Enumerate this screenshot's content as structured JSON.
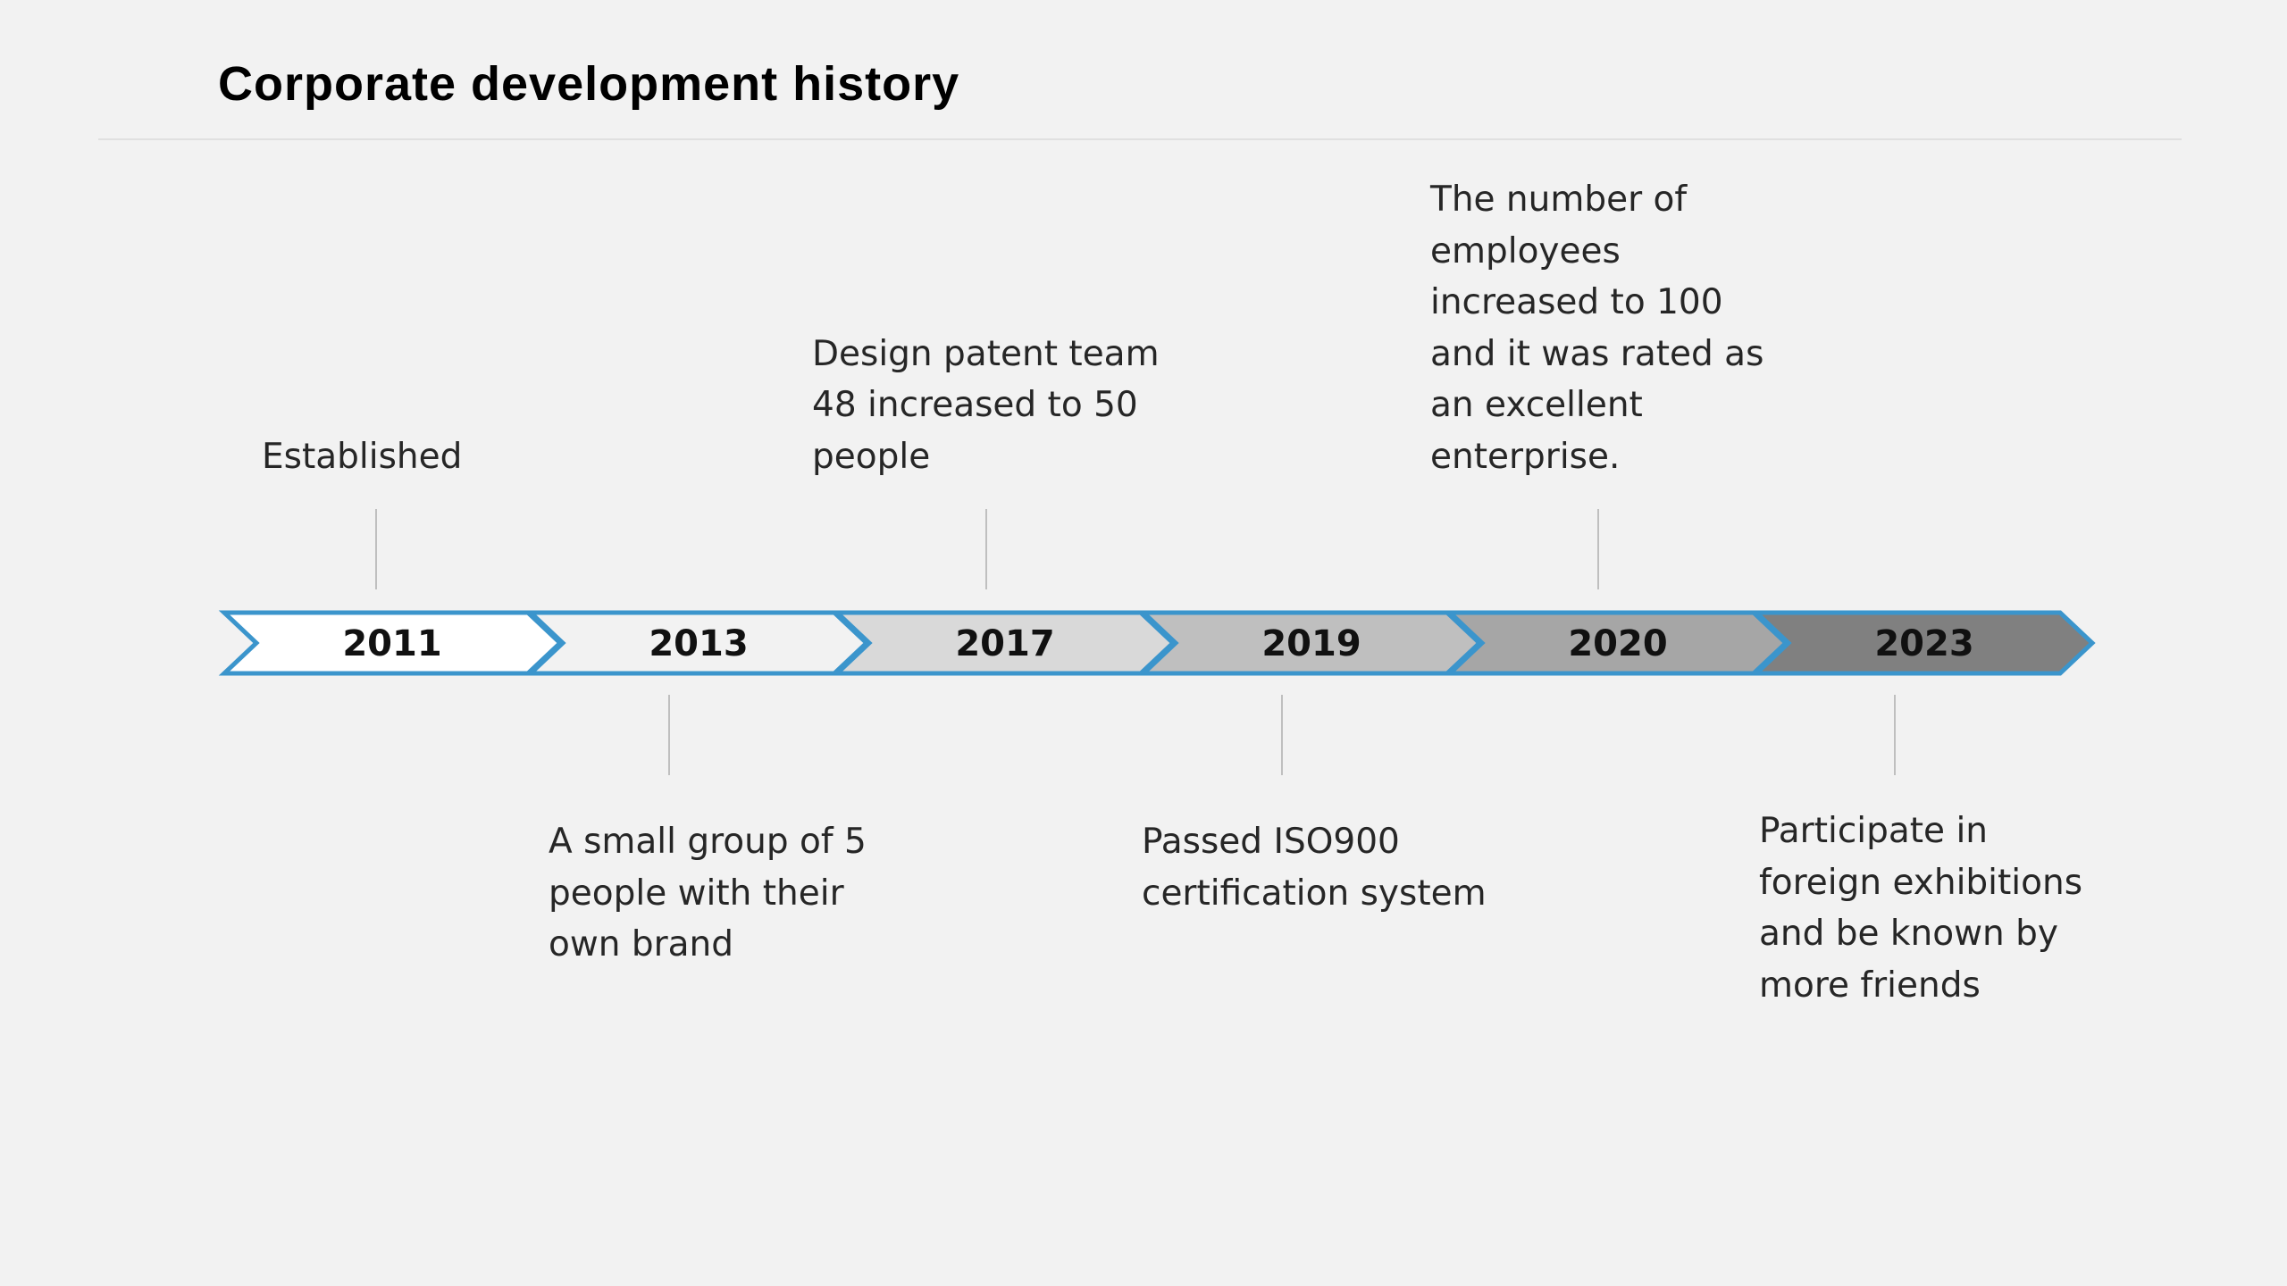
{
  "title": "Corporate development history",
  "colors": {
    "background": "#f2f2f2",
    "outline": "#3b95cc",
    "text": "#262626"
  },
  "milestones": [
    {
      "year": "2011",
      "text": "Established",
      "position": "above",
      "fill": "#ffffff"
    },
    {
      "year": "2013",
      "text": "A small group of 5 people with their own brand",
      "position": "below",
      "fill": "#f2f2f2"
    },
    {
      "year": "2017",
      "text": "Design patent team 48 increased to 50 people",
      "position": "above",
      "fill": "#d9d9d9"
    },
    {
      "year": "2019",
      "text": "Passed ISO900 certification system",
      "position": "below",
      "fill": "#bfbfbf"
    },
    {
      "year": "2020",
      "text": "The number of employees increased to 100 and it was rated as an excellent enterprise.",
      "position": "above",
      "fill": "#a6a6a6"
    },
    {
      "year": "2023",
      "text": "Participate in foreign exhibitions and be known by more friends",
      "position": "below",
      "fill": "#808080"
    }
  ]
}
